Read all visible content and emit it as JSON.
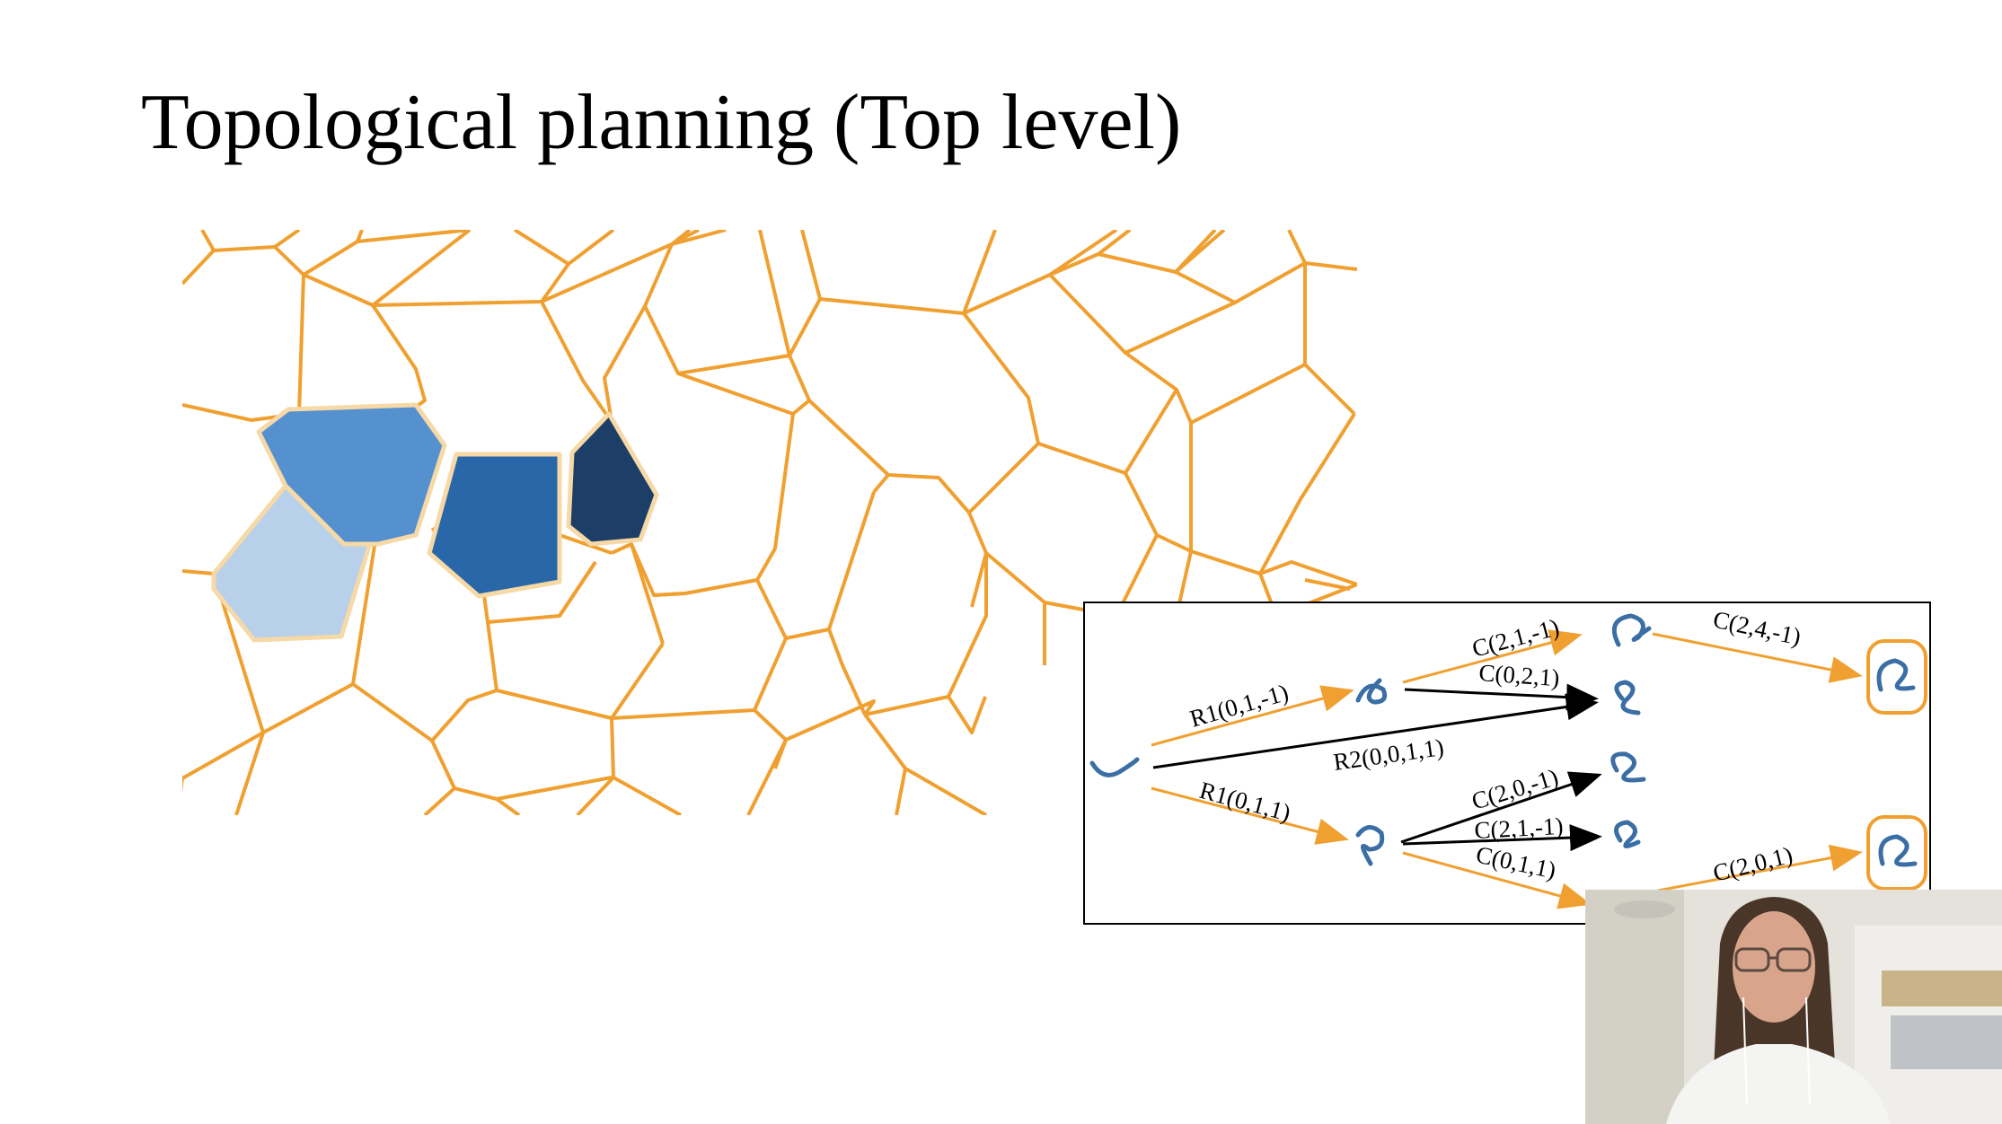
{
  "slide": {
    "title": "Topological planning (Top level)"
  },
  "colors": {
    "cell_border": "#f0a030",
    "cell_light": "#b8d0ea",
    "cell_medium_light": "#5590cf",
    "cell_medium": "#2a67a8",
    "cell_dark": "#1d3e66",
    "arrow_orange": "#f0a030",
    "arrow_black": "#000000",
    "knot_blue": "#3a6ea5"
  },
  "graph": {
    "edges": [
      {
        "id": "e1",
        "label": "R1(0,1,-1)",
        "color": "orange"
      },
      {
        "id": "e2",
        "label": "R2(0,0,1,1)",
        "color": "black"
      },
      {
        "id": "e3",
        "label": "R1(0,1,1)",
        "color": "orange"
      },
      {
        "id": "e4",
        "label": "C(2,1,-1)",
        "color": "orange"
      },
      {
        "id": "e5",
        "label": "C(0,2,1)",
        "color": "black"
      },
      {
        "id": "e6",
        "label": "C(2,4,-1)",
        "color": "orange"
      },
      {
        "id": "e7",
        "label": "C(2,0,-1)",
        "color": "black"
      },
      {
        "id": "e8",
        "label": "C(2,1,-1)",
        "color": "black"
      },
      {
        "id": "e9",
        "label": "C(0,1,1)",
        "color": "orange"
      },
      {
        "id": "e10",
        "label": "C(2,0,1)",
        "color": "orange"
      }
    ],
    "nodes": [
      {
        "id": "start",
        "icon": "rope-start-icon"
      },
      {
        "id": "n1",
        "icon": "rope-loop-icon"
      },
      {
        "id": "n2",
        "icon": "rope-loop-icon"
      },
      {
        "id": "n3",
        "icon": "rope-knot-icon"
      },
      {
        "id": "n4",
        "icon": "rope-knot-icon"
      },
      {
        "id": "n5",
        "icon": "rope-knot-icon"
      },
      {
        "id": "n6",
        "icon": "rope-knot-icon"
      },
      {
        "id": "goal1",
        "icon": "rope-knot-goal-icon"
      },
      {
        "id": "goal2",
        "icon": "rope-knot-goal-icon"
      }
    ]
  },
  "webcam": {
    "icon": "presenter-video-icon"
  }
}
